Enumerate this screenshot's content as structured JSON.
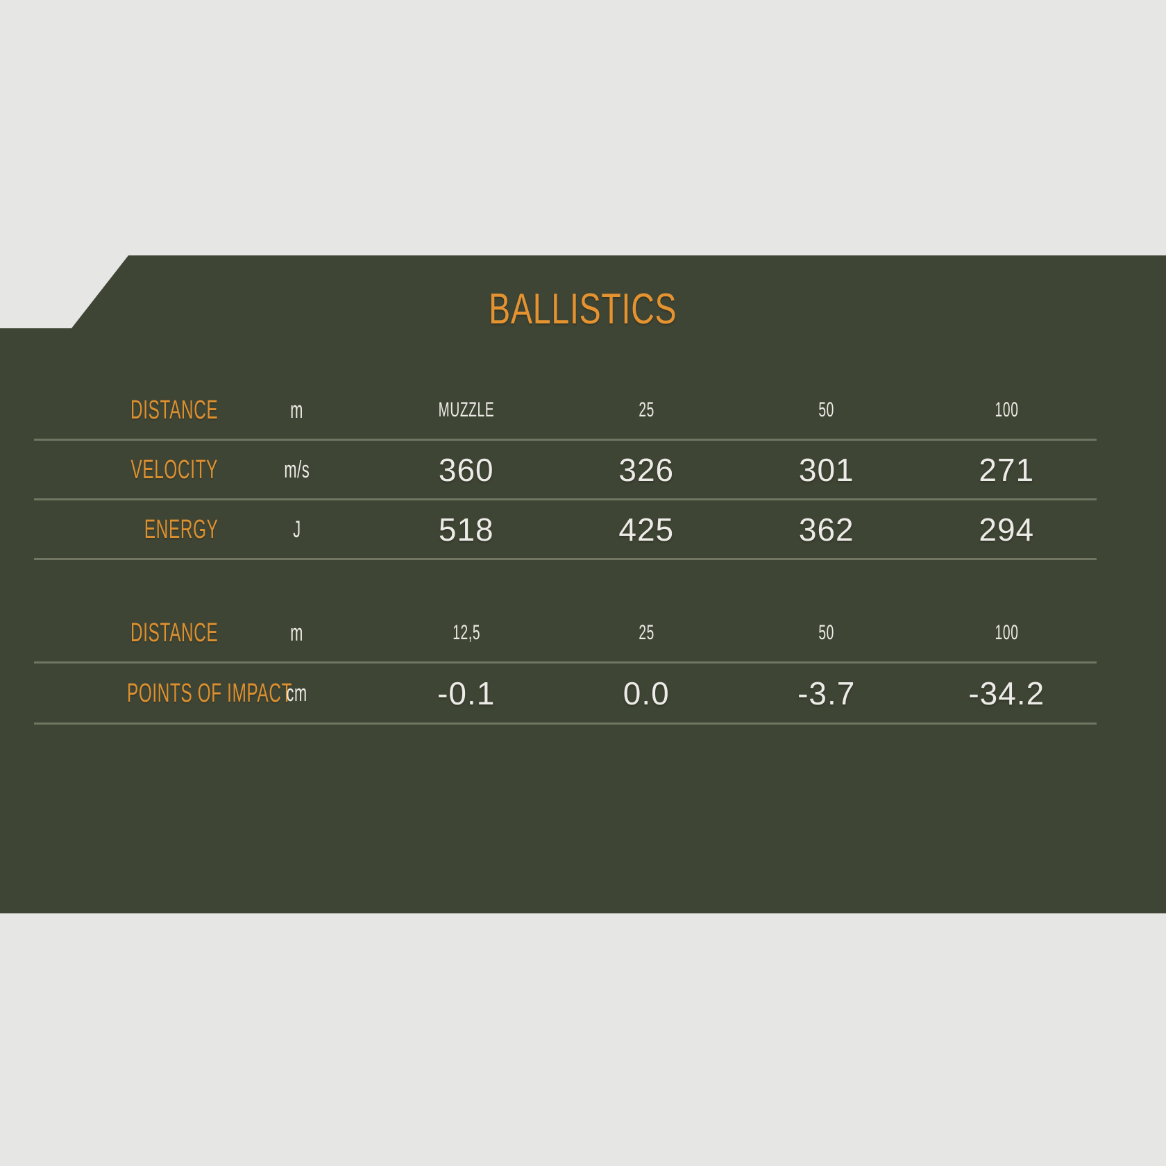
{
  "colors": {
    "page_background": "#e6e6e5",
    "panel_background": "#3f4534",
    "accent_orange": "#e59330",
    "text_light": "#edebe7",
    "divider_line": "#707763"
  },
  "title": "BALLISTICS",
  "table1": {
    "rows": [
      {
        "label": "DISTANCE",
        "unit": "m",
        "values": [
          "MUZZLE",
          "25",
          "50",
          "100"
        ]
      },
      {
        "label": "VELOCITY",
        "unit": "m/s",
        "values": [
          "360",
          "326",
          "301",
          "271"
        ]
      },
      {
        "label": "ENERGY",
        "unit": "J",
        "values": [
          "518",
          "425",
          "362",
          "294"
        ]
      }
    ]
  },
  "table2": {
    "rows": [
      {
        "label": "DISTANCE",
        "unit": "m",
        "values": [
          "12,5",
          "25",
          "50",
          "100"
        ]
      },
      {
        "label": "POINTS OF IMPACT",
        "unit": "cm",
        "values": [
          "-0.1",
          "0.0",
          "-3.7",
          "-34.2"
        ]
      }
    ]
  },
  "chart_data": {
    "type": "table",
    "title": "BALLISTICS",
    "tables": [
      {
        "name": "velocity-energy",
        "distance_unit": "m",
        "distances": [
          "MUZZLE",
          25,
          50,
          100
        ],
        "series": [
          {
            "name": "VELOCITY",
            "unit": "m/s",
            "values": [
              360,
              326,
              301,
              271
            ]
          },
          {
            "name": "ENERGY",
            "unit": "J",
            "values": [
              518,
              425,
              362,
              294
            ]
          }
        ]
      },
      {
        "name": "points-of-impact",
        "distance_unit": "m",
        "distances": [
          12.5,
          25,
          50,
          100
        ],
        "series": [
          {
            "name": "POINTS OF IMPACT",
            "unit": "cm",
            "values": [
              -0.1,
              0.0,
              -3.7,
              -34.2
            ]
          }
        ]
      }
    ],
    "layout": {
      "grid": "horizontal-dividers-only",
      "label_column": "right-aligned",
      "legend": "none"
    }
  }
}
